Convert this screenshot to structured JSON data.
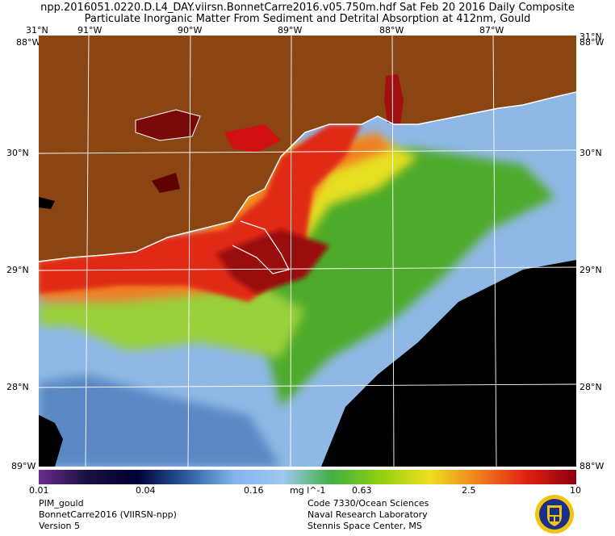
{
  "header": {
    "line1": "npp.2016051.0220.D.L4_DAY.viirsn.BonnetCarre2016.v05.750m.hdf       Sat Feb 20 2016 Daily Composite",
    "line2": "Particulate Inorganic Matter From Sediment and Detrital Absorption at 412nm, Gould"
  },
  "axes": {
    "top_lon": [
      "31°N",
      "91°W",
      "90°W",
      "89°W",
      "88°W",
      "87°W",
      "31°N"
    ],
    "left_lat": [
      "30°N",
      "29°N",
      "28°N"
    ],
    "right_lat": [
      "30°N",
      "29°N",
      "28°N"
    ],
    "corner_tl": "88°W",
    "corner_tr": "88°W",
    "corner_bl": "89°W",
    "corner_br": "88°W"
  },
  "colorbar": {
    "ticks": [
      "0.01",
      "0.04",
      "0.16",
      "0.63",
      "2.5",
      "10"
    ],
    "unit": "mg l^-1",
    "stops": [
      "#6a2c8c",
      "#1a1040",
      "#000033",
      "#2a5a9a",
      "#84b4ee",
      "#9ec8f0",
      "#40b040",
      "#90d010",
      "#f0e020",
      "#f08020",
      "#e02010",
      "#8a0010"
    ]
  },
  "info_left": [
    "PIM_gould",
    "BonnetCarre2016 (VIIRSN-npp)",
    "Version 5"
  ],
  "info_right": [
    "Code 7330/Ocean Sciences",
    "Naval Research Laboratory",
    "Stennis Space Center, MS"
  ],
  "colors": {
    "land": "#8B4513",
    "deep_water": "#000000",
    "low_water": "#9ec4ec",
    "mid_water": "#5cb030",
    "high_water": "#e8361a",
    "coast": "#ffffff"
  }
}
